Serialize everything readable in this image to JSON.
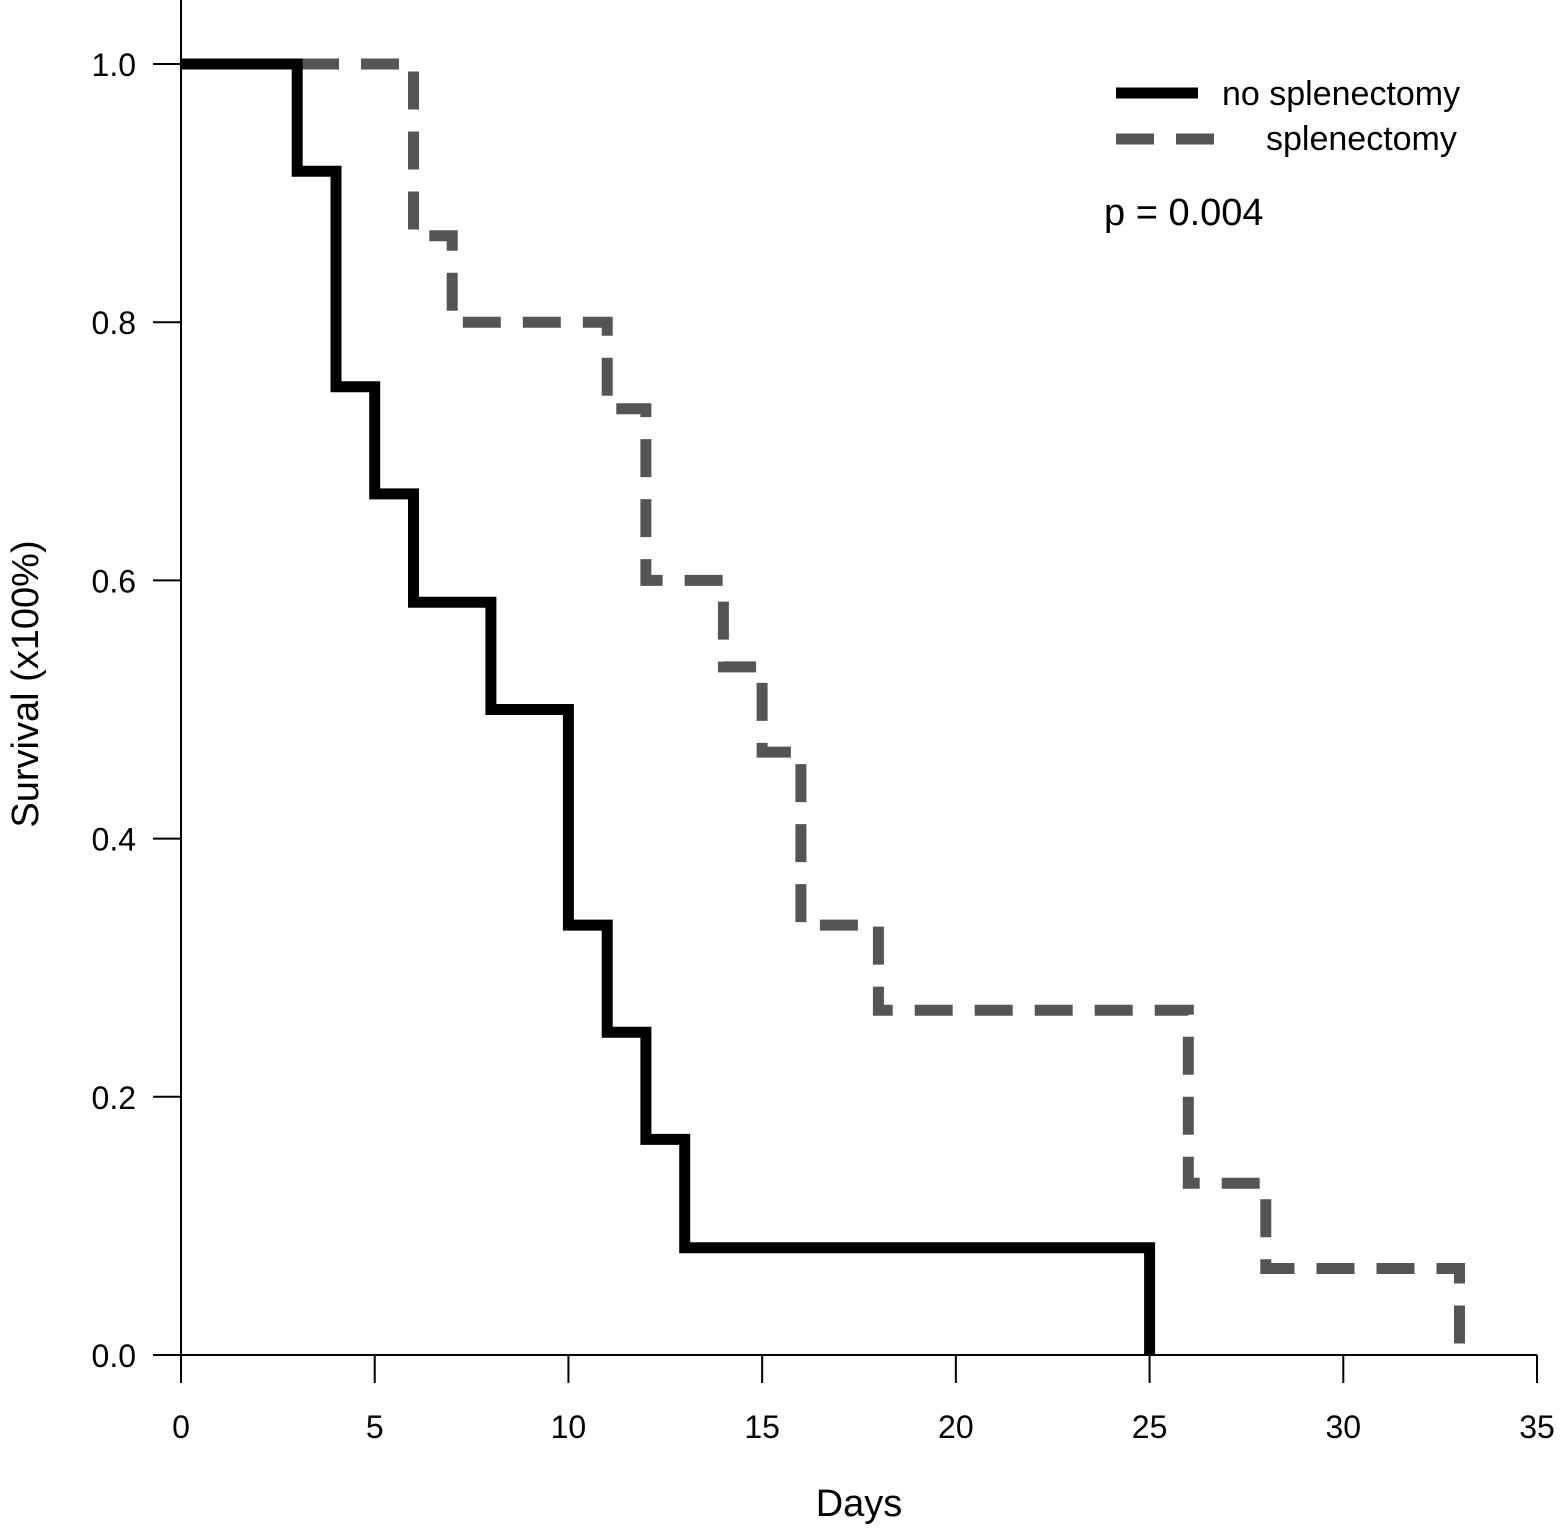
{
  "chart_data": {
    "type": "line",
    "subtype": "kaplan-meier-step",
    "title": "",
    "xlabel": "Days",
    "ylabel": "Survival (x100%)",
    "xlim": [
      0,
      35
    ],
    "ylim": [
      0,
      1
    ],
    "xticks": [
      0,
      5,
      10,
      15,
      20,
      25,
      30,
      35
    ],
    "xtick_labels": [
      "0",
      "5",
      "10",
      "15",
      "20",
      "25",
      "30",
      "35"
    ],
    "yticks": [
      0,
      0.2,
      0.4,
      0.6,
      0.8,
      1.0
    ],
    "ytick_labels": [
      "0.0",
      "0.2",
      "0.4",
      "0.6",
      "0.8",
      "1.0"
    ],
    "grid": false,
    "legend_position": "top-right",
    "series": [
      {
        "name": "no splenectomy",
        "legend_label": "no splenectomy",
        "color": "#000000",
        "style": "solid",
        "points": [
          [
            0,
            1.0
          ],
          [
            3,
            1.0
          ],
          [
            3,
            0.917
          ],
          [
            4,
            0.917
          ],
          [
            4,
            0.75
          ],
          [
            5,
            0.75
          ],
          [
            5,
            0.667
          ],
          [
            6,
            0.667
          ],
          [
            6,
            0.583
          ],
          [
            8,
            0.583
          ],
          [
            8,
            0.5
          ],
          [
            10,
            0.5
          ],
          [
            10,
            0.333
          ],
          [
            11,
            0.333
          ],
          [
            11,
            0.25
          ],
          [
            12,
            0.25
          ],
          [
            12,
            0.167
          ],
          [
            13,
            0.167
          ],
          [
            13,
            0.083
          ],
          [
            25,
            0.083
          ],
          [
            25,
            0.0
          ]
        ]
      },
      {
        "name": "splenectomy",
        "legend_label": "splenectomy",
        "color": "#555555",
        "style": "dashed",
        "points": [
          [
            0,
            1.0
          ],
          [
            6,
            1.0
          ],
          [
            6,
            0.867
          ],
          [
            7,
            0.867
          ],
          [
            7,
            0.8
          ],
          [
            11,
            0.8
          ],
          [
            11,
            0.733
          ],
          [
            12,
            0.733
          ],
          [
            12,
            0.6
          ],
          [
            14,
            0.6
          ],
          [
            14,
            0.533
          ],
          [
            15,
            0.533
          ],
          [
            15,
            0.467
          ],
          [
            16,
            0.467
          ],
          [
            16,
            0.333
          ],
          [
            18,
            0.333
          ],
          [
            18,
            0.267
          ],
          [
            26,
            0.267
          ],
          [
            26,
            0.133
          ],
          [
            28,
            0.133
          ],
          [
            28,
            0.067
          ],
          [
            33,
            0.067
          ],
          [
            33,
            0.0
          ]
        ]
      }
    ],
    "annotations": [
      {
        "text": "p = 0.004"
      }
    ]
  }
}
